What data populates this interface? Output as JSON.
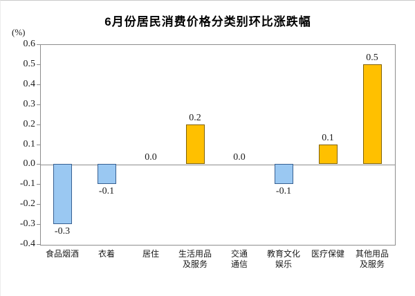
{
  "page": {
    "title": "6月份居民消费价格分类别环比涨跌幅",
    "unit_label": "(%)"
  },
  "chart_data": {
    "type": "bar",
    "title": "6月份居民消费价格分类别环比涨跌幅",
    "ylabel": "(%)",
    "categories": [
      "食品烟酒",
      "衣着",
      "居住",
      "生活用品及服务",
      "交通通信",
      "教育文化娱乐",
      "医疗保健",
      "其他用品及服务"
    ],
    "category_label_lines": [
      [
        "食品烟酒"
      ],
      [
        "衣着"
      ],
      [
        "居住"
      ],
      [
        "生活用品",
        "及服务"
      ],
      [
        "交通",
        "通信"
      ],
      [
        "教育文化",
        "娱乐"
      ],
      [
        "医疗保健"
      ],
      [
        "其他用品",
        "及服务"
      ]
    ],
    "values": [
      -0.3,
      -0.1,
      0.0,
      0.2,
      0.0,
      -0.1,
      0.1,
      0.5
    ],
    "value_labels": [
      "-0.3",
      "-0.1",
      "0.0",
      "0.2",
      "0.0",
      "-0.1",
      "0.1",
      "0.5"
    ],
    "ylim": [
      -0.4,
      0.6
    ],
    "ytick_labels": [
      "0.6",
      "0.5",
      "0.4",
      "0.3",
      "0.2",
      "0.1",
      "0.0",
      "-0.1",
      "-0.2",
      "-0.3",
      "-0.4"
    ],
    "grid": "off",
    "legend": "none",
    "colors": {
      "positive_fill": "#FFC000",
      "positive_border": "#7F6000",
      "negative_fill": "#9AC8F2",
      "negative_border": "#365F91",
      "axis": "#8C8C8C",
      "text": "#1A1A1A"
    }
  }
}
